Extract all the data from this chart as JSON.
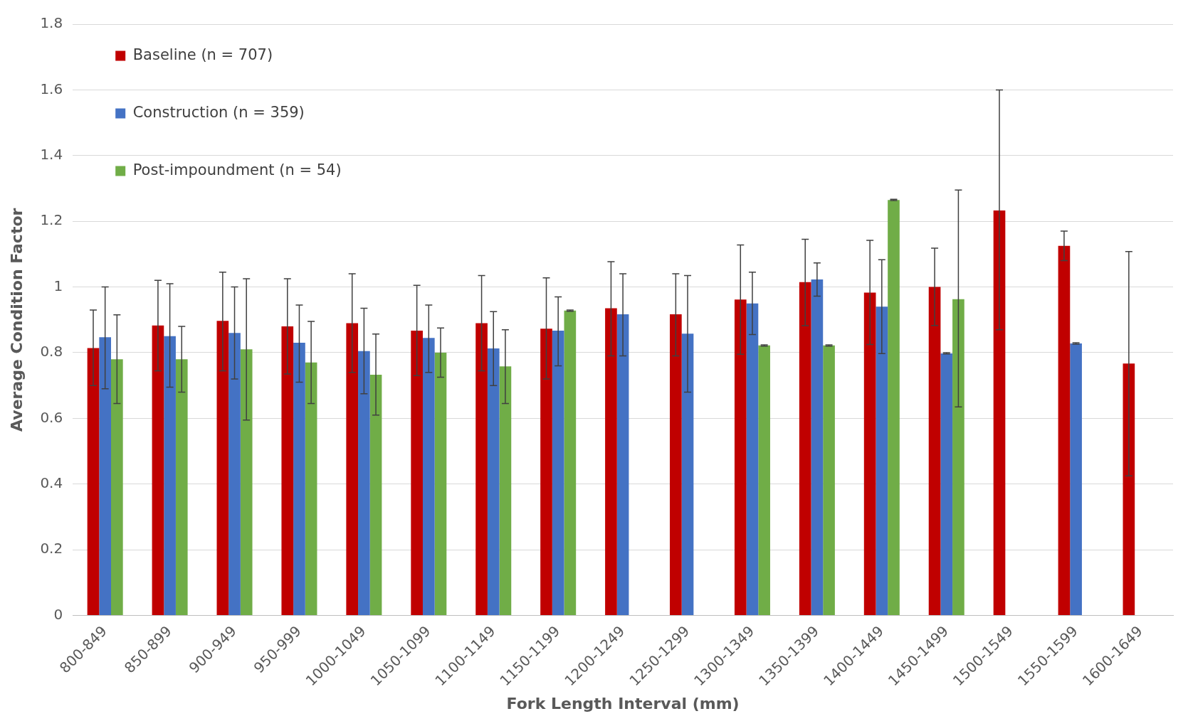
{
  "chart_data": {
    "type": "bar",
    "xlabel": "Fork Length Interval (mm)",
    "ylabel": "Average Condition Factor",
    "categories": [
      "800-849",
      "850-899",
      "900-949",
      "950-999",
      "1000-1049",
      "1050-1099",
      "1100-1149",
      "1150-1199",
      "1200-1249",
      "1250-1299",
      "1300-1349",
      "1350-1399",
      "1400-1449",
      "1450-1499",
      "1500-1549",
      "1550-1599",
      "1600-1649"
    ],
    "series": [
      {
        "name": "Baseline (n = 707)",
        "color": "#c00000",
        "values": [
          0.814,
          0.883,
          0.897,
          0.88,
          0.89,
          0.867,
          0.89,
          0.873,
          0.935,
          0.917,
          0.962,
          1.015,
          0.983,
          1.0,
          1.233,
          1.125,
          0.767
        ],
        "errors": [
          [
            0.7,
            0.93
          ],
          [
            0.745,
            1.02
          ],
          [
            0.745,
            1.045
          ],
          [
            0.735,
            1.025
          ],
          [
            0.74,
            1.04
          ],
          [
            0.73,
            1.005
          ],
          [
            0.745,
            1.035
          ],
          [
            0.72,
            1.028
          ],
          [
            0.79,
            1.077
          ],
          [
            0.79,
            1.04
          ],
          [
            0.795,
            1.128
          ],
          [
            0.882,
            1.145
          ],
          [
            0.825,
            1.142
          ],
          [
            0.883,
            1.118
          ],
          [
            0.87,
            1.6
          ],
          [
            1.08,
            1.17
          ],
          [
            0.425,
            1.108
          ]
        ]
      },
      {
        "name": "Construction (n = 359)",
        "color": "#4472c4",
        "values": [
          0.847,
          0.85,
          0.86,
          0.83,
          0.805,
          0.845,
          0.813,
          0.867,
          0.917,
          0.858,
          0.95,
          1.023,
          0.94,
          0.798,
          null,
          0.828,
          null
        ],
        "errors": [
          [
            0.69,
            1.0
          ],
          [
            0.695,
            1.01
          ],
          [
            0.72,
            1.0
          ],
          [
            0.71,
            0.945
          ],
          [
            0.675,
            0.935
          ],
          [
            0.74,
            0.945
          ],
          [
            0.7,
            0.925
          ],
          [
            0.76,
            0.97
          ],
          [
            0.79,
            1.04
          ],
          [
            0.68,
            1.035
          ],
          [
            0.855,
            1.045
          ],
          [
            0.972,
            1.073
          ],
          [
            0.797,
            1.083
          ],
          [
            0.796,
            0.8
          ],
          null,
          [
            0.826,
            0.83
          ],
          null
        ]
      },
      {
        "name": "Post-impoundment (n = 54)",
        "color": "#70ad47",
        "values": [
          0.78,
          0.78,
          0.81,
          0.77,
          0.733,
          0.8,
          0.758,
          0.928,
          null,
          null,
          0.822,
          0.822,
          1.265,
          0.963,
          null,
          null,
          null
        ],
        "errors": [
          [
            0.645,
            0.915
          ],
          [
            0.68,
            0.88
          ],
          [
            0.595,
            1.025
          ],
          [
            0.645,
            0.895
          ],
          [
            0.61,
            0.857
          ],
          [
            0.725,
            0.875
          ],
          [
            0.645,
            0.87
          ],
          [
            0.926,
            0.93
          ],
          null,
          null,
          [
            0.82,
            0.824
          ],
          [
            0.82,
            0.824
          ],
          [
            1.263,
            1.267
          ],
          [
            0.635,
            1.295
          ],
          null,
          null,
          null
        ]
      }
    ],
    "ylim": [
      0,
      1.8
    ],
    "yticks": [
      0,
      0.2,
      0.4,
      0.6,
      0.8,
      1,
      1.2,
      1.4,
      1.6,
      1.8
    ],
    "grid": "y",
    "legend": "top left"
  }
}
